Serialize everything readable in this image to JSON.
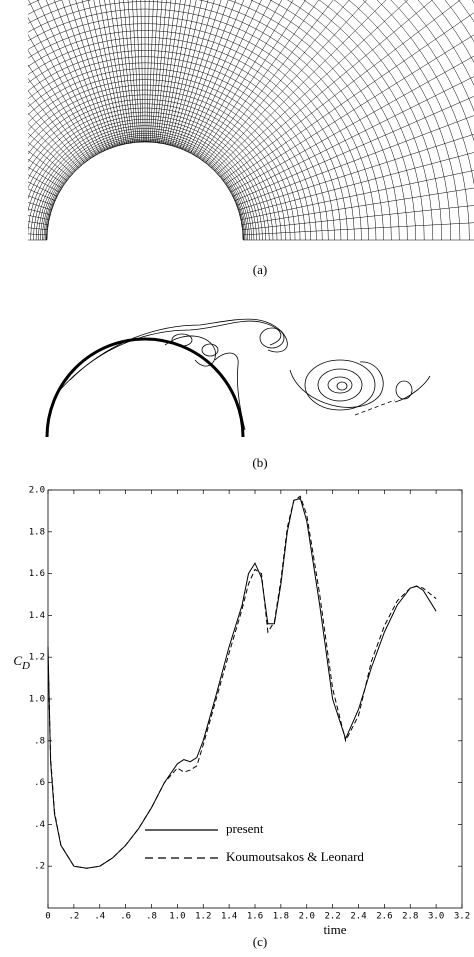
{
  "captions": [
    "(a)",
    "(b)",
    "(c)"
  ],
  "chart_data": {
    "type": "line",
    "x_label": "time",
    "y_label": "C",
    "y_label_subscript": "D",
    "x": [
      0,
      0.02,
      0.05,
      0.1,
      0.2,
      0.3,
      0.4,
      0.5,
      0.6,
      0.7,
      0.8,
      0.9,
      1.0,
      1.05,
      1.1,
      1.15,
      1.2,
      1.3,
      1.4,
      1.5,
      1.55,
      1.6,
      1.65,
      1.7,
      1.75,
      1.8,
      1.85,
      1.9,
      1.95,
      2.0,
      2.1,
      2.2,
      2.3,
      2.4,
      2.5,
      2.6,
      2.7,
      2.8,
      2.85,
      2.9,
      3.0
    ],
    "series": [
      {
        "name": "present",
        "color": "#000000",
        "dash": false,
        "values": [
          1.25,
          0.7,
          0.45,
          0.3,
          0.2,
          0.19,
          0.2,
          0.24,
          0.3,
          0.38,
          0.48,
          0.6,
          0.69,
          0.71,
          0.7,
          0.72,
          0.8,
          1.02,
          1.25,
          1.45,
          1.6,
          1.65,
          1.58,
          1.36,
          1.36,
          1.55,
          1.8,
          1.95,
          1.96,
          1.85,
          1.45,
          1.0,
          0.81,
          0.95,
          1.15,
          1.32,
          1.45,
          1.53,
          1.54,
          1.52,
          1.42
        ]
      },
      {
        "name": "Koumoutsakos & Leonard",
        "color": "#000000",
        "dash": true,
        "values": [
          1.2,
          0.72,
          0.46,
          0.3,
          0.2,
          0.19,
          0.2,
          0.24,
          0.3,
          0.38,
          0.48,
          0.6,
          0.67,
          0.65,
          0.66,
          0.68,
          0.78,
          1.0,
          1.22,
          1.43,
          1.55,
          1.62,
          1.6,
          1.32,
          1.37,
          1.57,
          1.82,
          1.95,
          1.97,
          1.88,
          1.5,
          1.05,
          0.8,
          0.92,
          1.18,
          1.35,
          1.47,
          1.53,
          1.54,
          1.53,
          1.48
        ]
      }
    ],
    "xlim": [
      0,
      3.2
    ],
    "ylim": [
      0,
      2.0
    ],
    "xticks": [
      0,
      {
        "value": 0.2,
        "label": ".2"
      },
      {
        "value": 0.4,
        "label": ".4"
      },
      {
        "value": 0.6,
        "label": ".6"
      },
      {
        "value": 0.8,
        "label": ".8"
      },
      {
        "value": 1.0,
        "label": "1.0"
      },
      1.2,
      1.4,
      1.6,
      1.8,
      {
        "value": 2.0,
        "label": "2.0"
      },
      2.2,
      2.4,
      2.6,
      2.8,
      {
        "value": 3.0,
        "label": "3.0"
      },
      3.2
    ],
    "yticks": [
      {
        "value": 0.2,
        "label": ".2"
      },
      {
        "value": 0.4,
        "label": ".4"
      },
      {
        "value": 0.6,
        "label": ".6"
      },
      {
        "value": 0.8,
        "label": ".8"
      },
      {
        "value": 1.0,
        "label": "1.0"
      },
      1.2,
      1.4,
      1.6,
      1.8,
      {
        "value": 2.0,
        "label": "2.0"
      }
    ]
  }
}
